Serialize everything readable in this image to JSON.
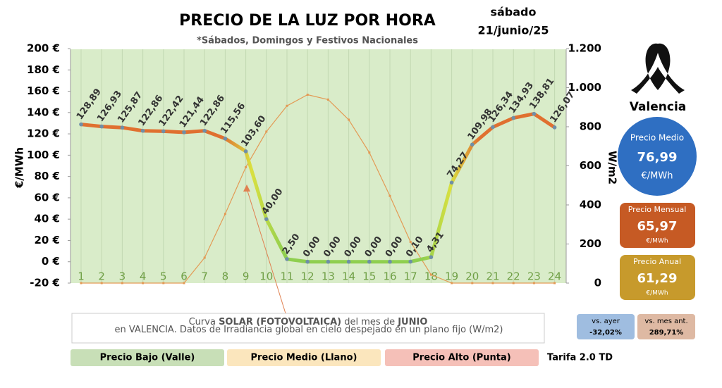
{
  "chart_data": {
    "type": "line",
    "title": "PRECIO DE LA LUZ POR HORA",
    "subtitle": "*Sábados, Domingos y Festivos Nacionales",
    "date": [
      "sábado",
      "21/junio/25"
    ],
    "ylabel": "€/MWh",
    "y2label": "W/m2",
    "categories": [
      "1",
      "2",
      "3",
      "4",
      "5",
      "6",
      "7",
      "8",
      "9",
      "10",
      "11",
      "12",
      "13",
      "14",
      "15",
      "16",
      "17",
      "18",
      "19",
      "20",
      "21",
      "22",
      "23",
      "24"
    ],
    "series": [
      {
        "color": "#e07030",
        "axis": "y",
        "values": [
          128.89,
          126.93,
          125.87,
          122.86,
          122.42,
          121.44,
          122.86,
          115.56,
          103.6,
          40.0,
          2.5,
          0.0,
          0.0,
          0.0,
          0.0,
          0.0,
          0.1,
          4.31,
          74.27,
          109.98,
          126.34,
          134.93,
          138.81,
          126.07
        ],
        "value_labels": [
          "128,89",
          "126,93",
          "125,87",
          "122,86",
          "122,42",
          "121,44",
          "122,86",
          "115,56",
          "103,60",
          "40,00",
          "2,50",
          "0,00",
          "0,00",
          "0,00",
          "0,00",
          "0,00",
          "0,10",
          "4,31",
          "74,27",
          "109,98",
          "126,34",
          "134,93",
          "138,81",
          "126,07"
        ]
      },
      {
        "color": "#e39a55",
        "axis": "y2",
        "values": [
          0,
          0,
          0,
          0,
          0,
          0,
          130,
          354,
          593,
          775,
          907,
          964,
          939,
          836,
          668,
          446,
          211,
          43,
          0,
          0,
          0,
          0,
          0,
          0
        ]
      }
    ],
    "ylim": [
      -20,
      200
    ],
    "yticks": [
      {
        "value": -20,
        "label": "-20 €"
      },
      {
        "value": 0,
        "label": "0 €"
      },
      {
        "value": 20,
        "label": "20 €"
      },
      {
        "value": 40,
        "label": "40 €"
      },
      {
        "value": 60,
        "label": "60 €"
      },
      {
        "value": 80,
        "label": "80 €"
      },
      {
        "value": 100,
        "label": "100 €"
      },
      {
        "value": 120,
        "label": "120 €"
      },
      {
        "value": 140,
        "label": "140 €"
      },
      {
        "value": 160,
        "label": "160 €"
      },
      {
        "value": 180,
        "label": "180 €"
      },
      {
        "value": 200,
        "label": "200 €"
      }
    ],
    "y2lim": [
      0,
      1200
    ],
    "y2ticks": [
      0,
      200,
      400,
      600,
      800,
      {
        "value": 1000,
        "label": "1.000"
      },
      {
        "value": 1200,
        "label": "1.200"
      }
    ],
    "annotation": [
      "Curva ",
      "SOLAR (FOTOVOLTAICA)",
      " del mes de ",
      "JUNIO",
      " en VALENCIA. Datos de Irradiancia global en cielo despejado en un plano fijo (W/m2)"
    ]
  },
  "panel": {
    "city": "Valencia",
    "medio": {
      "label": "Precio Medio",
      "value": "76,99",
      "unit": "€/MWh"
    },
    "mensual": {
      "label": "Precio Mensual",
      "value": "65,97",
      "unit": "€/MWh"
    },
    "anual": {
      "label": "Precio Anual",
      "value": "61,29",
      "unit": "€/MWh"
    },
    "ayer": {
      "label": "vs. ayer",
      "value": "-32,02%"
    },
    "mes": {
      "label": "vs. mes ant.",
      "value": "289,71%"
    }
  },
  "legend_bars": [
    "Precio Bajo (Valle)",
    "Precio Medio (Llano)",
    "Precio Alto (Punta)"
  ],
  "tarifa": "Tarifa 2.0 TD"
}
